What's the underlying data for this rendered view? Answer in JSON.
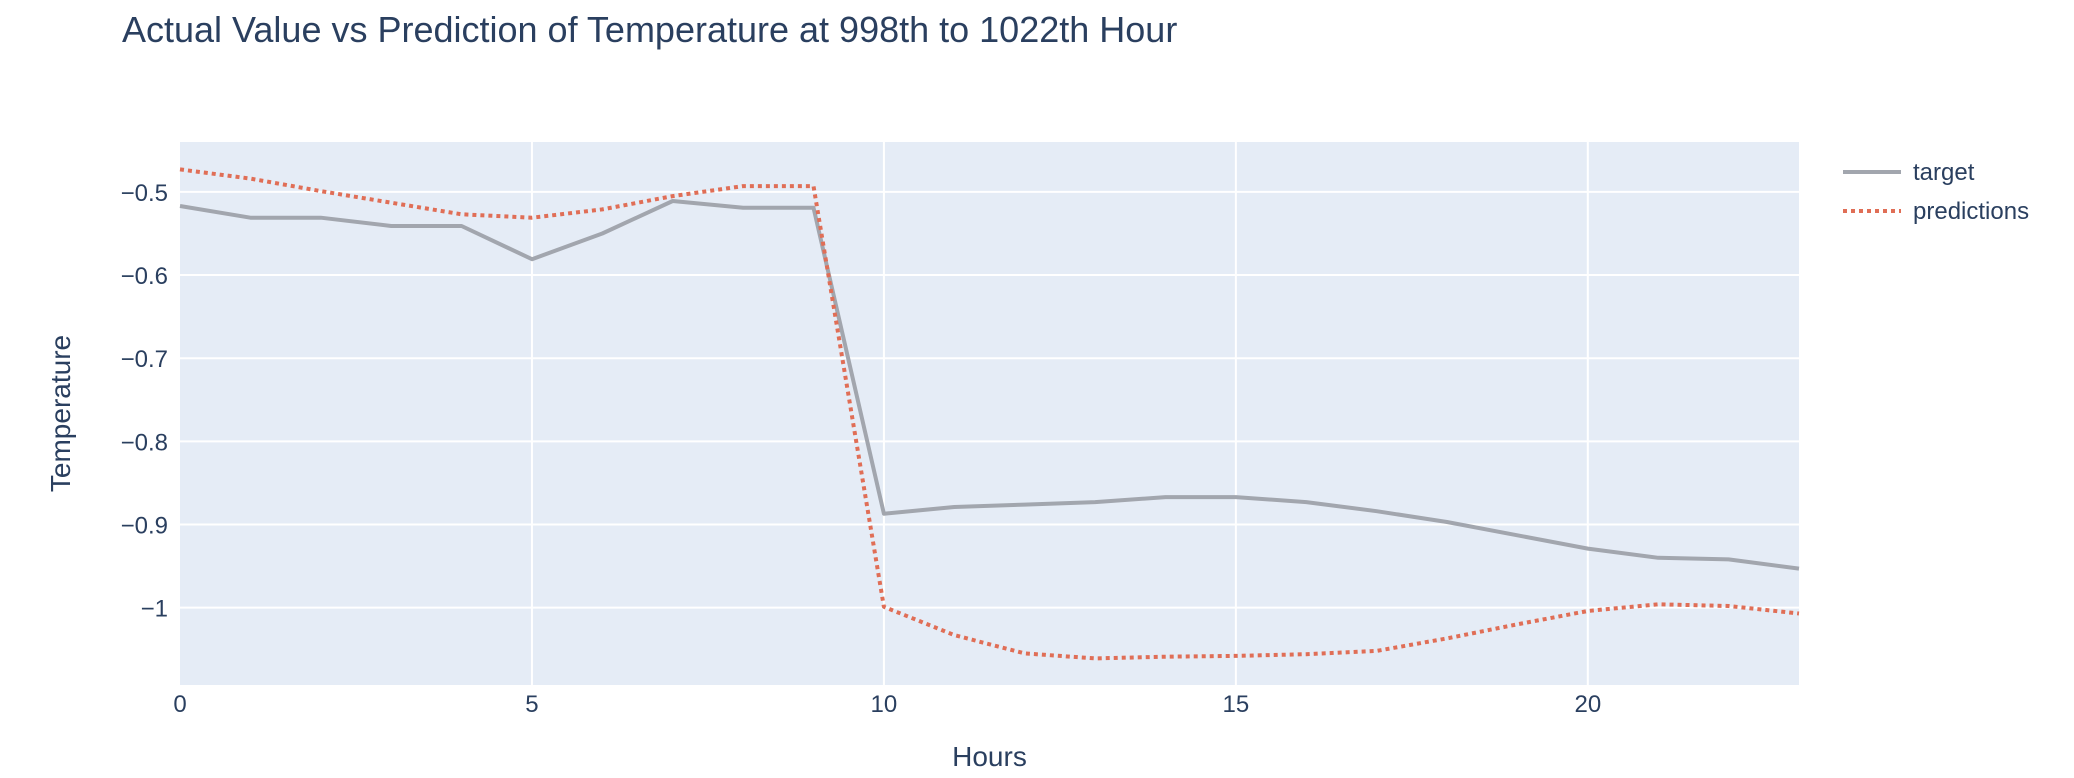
{
  "chart_data": {
    "type": "line",
    "title": "Actual Value vs Prediction of Temperature at 998th to 1022th Hour",
    "xlabel": "Hours",
    "ylabel": "Temperature",
    "xlim": [
      0,
      23
    ],
    "ylim": [
      -1.093,
      -0.44
    ],
    "x_ticks": [
      0,
      5,
      10,
      15,
      20
    ],
    "x_tick_labels": [
      "0",
      "5",
      "10",
      "15",
      "20"
    ],
    "y_ticks": [
      -0.5,
      -0.6,
      -0.7,
      -0.8,
      -0.9,
      -1.0
    ],
    "y_tick_labels": [
      "−0.5",
      "−0.6",
      "−0.7",
      "−0.8",
      "−0.9",
      "−1"
    ],
    "grid": true,
    "legend_position": "top-right",
    "x": [
      0,
      1,
      2,
      3,
      4,
      5,
      6,
      7,
      8,
      9,
      10,
      11,
      12,
      13,
      14,
      15,
      16,
      17,
      18,
      19,
      20,
      21,
      22,
      23
    ],
    "series": [
      {
        "name": "target",
        "color": "#a2a6ae",
        "dash": "solid",
        "values": [
          -0.517,
          -0.531,
          -0.531,
          -0.541,
          -0.541,
          -0.581,
          -0.55,
          -0.511,
          -0.519,
          -0.519,
          -0.887,
          -0.879,
          -0.876,
          -0.873,
          -0.867,
          -0.867,
          -0.873,
          -0.884,
          -0.897,
          -0.913,
          -0.929,
          -0.94,
          -0.942,
          -0.953
        ]
      },
      {
        "name": "predictions",
        "color": "#e06e56",
        "dash": "dot",
        "values": [
          -0.473,
          -0.484,
          -0.499,
          -0.513,
          -0.527,
          -0.531,
          -0.521,
          -0.505,
          -0.493,
          -0.493,
          -0.999,
          -1.033,
          -1.055,
          -1.061,
          -1.059,
          -1.058,
          -1.056,
          -1.052,
          -1.037,
          -1.02,
          -1.004,
          -0.996,
          -0.998,
          -1.007
        ]
      }
    ],
    "plot_background": "#e5ecf6",
    "grid_color": "#ffffff",
    "text_color": "#2a3f5f"
  }
}
